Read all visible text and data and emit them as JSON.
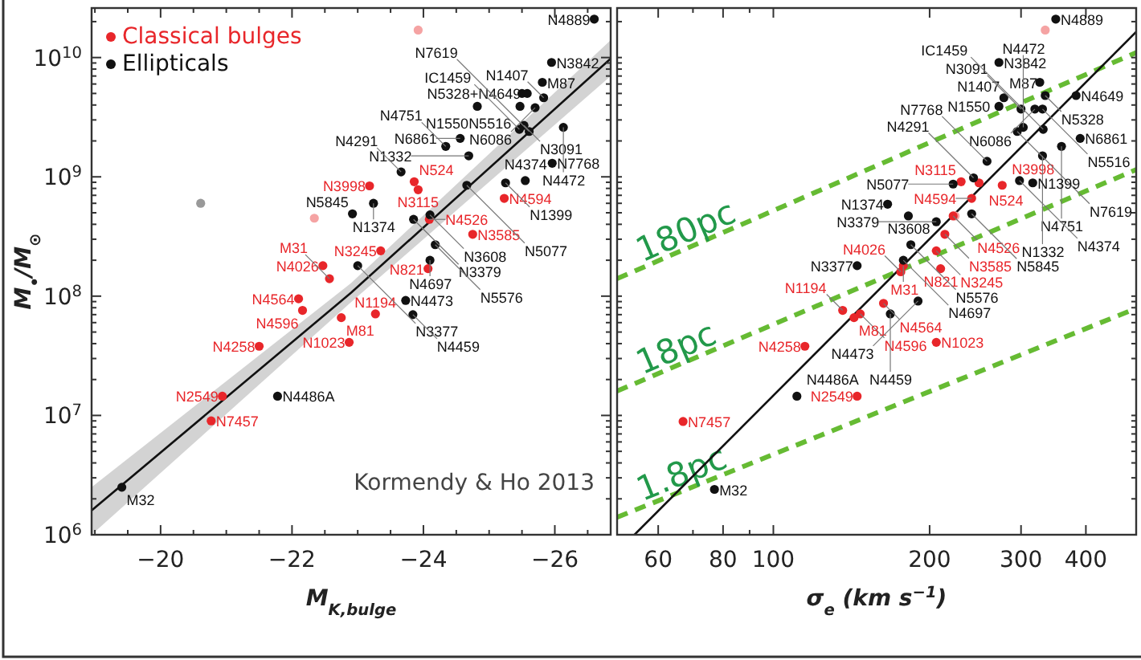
{
  "chart_data": [
    {
      "type": "scatter",
      "xlabel": "M$_{K,bulge}$",
      "ylabel": "M$_{•}$/M$_{⊙}$",
      "log": "y",
      "marker": "circle",
      "grid": false,
      "legend": "top left",
      "xlim": [
        -18.95,
        -26.85
      ],
      "ylim": [
        1000000,
        26000000000
      ],
      "xticks": [
        {
          "value": -19,
          "label": null
        },
        {
          "value": -19.5,
          "label": null
        },
        {
          "value": -20,
          "label": "−20"
        },
        {
          "value": -20.5,
          "label": null
        },
        {
          "value": -21,
          "label": null
        },
        {
          "value": -21.5,
          "label": null
        },
        {
          "value": -22,
          "label": "−22"
        },
        {
          "value": -22.5,
          "label": null
        },
        {
          "value": -23,
          "label": null
        },
        {
          "value": -23.5,
          "label": null
        },
        {
          "value": -24,
          "label": "−24"
        },
        {
          "value": -24.5,
          "label": null
        },
        {
          "value": -25,
          "label": null
        },
        {
          "value": -25.5,
          "label": null
        },
        {
          "value": -26,
          "label": "−26"
        },
        {
          "value": -26.5,
          "label": null
        }
      ],
      "yticks": [
        {
          "value": 1000000,
          "label": "10$^{6}$"
        },
        {
          "value": 2000000,
          "label": null
        },
        {
          "value": 3000000,
          "label": null
        },
        {
          "value": 4000000,
          "label": null
        },
        {
          "value": 5000000,
          "label": null
        },
        {
          "value": 6000000,
          "label": null
        },
        {
          "value": 7000000,
          "label": null
        },
        {
          "value": 8000000,
          "label": null
        },
        {
          "value": 9000000,
          "label": null
        },
        {
          "value": 10000000,
          "label": "10$^{7}$"
        },
        {
          "value": 20000000,
          "label": null
        },
        {
          "value": 30000000,
          "label": null
        },
        {
          "value": 40000000,
          "label": null
        },
        {
          "value": 50000000,
          "label": null
        },
        {
          "value": 60000000,
          "label": null
        },
        {
          "value": 70000000,
          "label": null
        },
        {
          "value": 80000000,
          "label": null
        },
        {
          "value": 90000000,
          "label": null
        },
        {
          "value": 100000000,
          "label": "10$^{8}$"
        },
        {
          "value": 200000000,
          "label": null
        },
        {
          "value": 300000000,
          "label": null
        },
        {
          "value": 400000000,
          "label": null
        },
        {
          "value": 500000000,
          "label": null
        },
        {
          "value": 600000000,
          "label": null
        },
        {
          "value": 700000000,
          "label": null
        },
        {
          "value": 800000000,
          "label": null
        },
        {
          "value": 900000000,
          "label": null
        },
        {
          "value": 1000000000,
          "label": "10$^{9}$"
        },
        {
          "value": 2000000000,
          "label": null
        },
        {
          "value": 3000000000,
          "label": null
        },
        {
          "value": 4000000000,
          "label": null
        },
        {
          "value": 5000000000,
          "label": null
        },
        {
          "value": 6000000000,
          "label": null
        },
        {
          "value": 7000000000,
          "label": null
        },
        {
          "value": 8000000000,
          "label": null
        },
        {
          "value": 9000000000,
          "label": null
        },
        {
          "value": 10000000000,
          "label": "10$^{10}$"
        },
        {
          "value": 20000000000,
          "label": null
        }
      ],
      "series": [
        {
          "type": "line",
          "marker": "none",
          "color": "#111111",
          "x": [
            -18.95,
            -22.9,
            -26.85
          ],
          "values": [
            1600000,
            107000000,
            9800000000
          ],
          "lower": [
            1000000,
            89000000,
            7000000000
          ],
          "upper": [
            2500000,
            129000000,
            14000000000
          ]
        },
        {
          "color": "#f5a3a3",
          "x": [
            -23.92,
            -22.34
          ],
          "values": [
            17000000000,
            450000000
          ]
        },
        {
          "color": "#999999",
          "x": [
            -20.61
          ],
          "values": [
            600000000
          ]
        },
        {
          "name": "Classical bulges",
          "color": "#e8262a",
          "x": [
            -23.86,
            -23.92,
            -23.18,
            -25.23,
            -24.09,
            -24.75,
            -23.35,
            -24.07,
            -22.47,
            -22.57,
            -22.1,
            -22.16,
            -22.75,
            -23.27,
            -22.87,
            -21.5,
            -20.94,
            -20.77
          ],
          "values": [
            910000000,
            780000000,
            840000000,
            660000000,
            440000000,
            330000000,
            240000000,
            170000000,
            180000000,
            140000000,
            95000000,
            76000000,
            66000000,
            71000000,
            41000000,
            38000000,
            14500000,
            9000000
          ]
        },
        {
          "name": "Ellipticals",
          "color": "#111111",
          "x": [
            -26.6,
            -25.95,
            -25.5,
            -25.58,
            -25.81,
            -25.83,
            -25.47,
            -24.82,
            -25.7,
            -25.53,
            -25.46,
            -26.13,
            -24.56,
            -25.61,
            -24.34,
            -25.96,
            -24.69,
            -23.66,
            -25.25,
            -25.55,
            -24.66,
            -23.24,
            -22.92,
            -24.1,
            -23.85,
            -24.1,
            -24.18,
            -23,
            -23.73,
            -23.84,
            -21.78,
            -19.41
          ],
          "values": [
            21000000000,
            9100000000,
            5000000000,
            5000000000,
            6200000000,
            4600000000,
            3900000000,
            3900000000,
            3800000000,
            2700000000,
            2500000000,
            2600000000,
            2100000000,
            2400000000,
            1800000000,
            1300000000,
            1500000000,
            1100000000,
            890000000,
            930000000,
            850000000,
            600000000,
            490000000,
            480000000,
            440000000,
            200000000,
            270000000,
            180000000,
            92000000,
            70000000,
            14500000,
            2500000
          ]
        }
      ],
      "annotations": [
        "Kormendy & Ho 2013",
        {
          "text": "N524",
          "x": -23.86,
          "y": 910000000
        },
        {
          "text": "N3115",
          "x": -23.92,
          "y": 780000000
        },
        {
          "text": "N3998",
          "x": -23.18,
          "y": 840000000
        },
        {
          "text": "N4594",
          "x": -25.23,
          "y": 660000000
        },
        {
          "text": "N4526",
          "x": -24.09,
          "y": 440000000
        },
        {
          "text": "N3585",
          "x": -24.75,
          "y": 330000000
        },
        {
          "text": "N3245",
          "x": -23.35,
          "y": 240000000
        },
        {
          "text": "N821",
          "x": -24.07,
          "y": 170000000
        },
        {
          "text": "N4026",
          "x": -22.47,
          "y": 180000000
        },
        {
          "text": "M31",
          "x": -22.57,
          "y": 140000000
        },
        {
          "text": "N4564",
          "x": -22.1,
          "y": 95000000
        },
        {
          "text": "N4596",
          "x": -22.16,
          "y": 76000000
        },
        {
          "text": "M81",
          "x": -22.75,
          "y": 66000000
        },
        {
          "text": "N1194",
          "x": -23.27,
          "y": 71000000
        },
        {
          "text": "N1023",
          "x": -22.87,
          "y": 41000000
        },
        {
          "text": "N4258",
          "x": -21.5,
          "y": 38000000
        },
        {
          "text": "N2549",
          "x": -20.94,
          "y": 14500000
        },
        {
          "text": "N7457",
          "x": -20.77,
          "y": 9000000
        },
        {
          "text": "N4889",
          "x": -26.6,
          "y": 21000000000
        },
        {
          "text": "N3842",
          "x": -25.95,
          "y": 9100000000
        },
        {
          "text": "N5328+N4649",
          "x": -25.5,
          "y": 5000000000
        },
        {
          "text": "M87",
          "x": -25.81,
          "y": 6200000000
        },
        {
          "text": "N1407",
          "x": -25.83,
          "y": 4600000000
        },
        {
          "text": "N5516",
          "x": -25.47,
          "y": 3900000000
        },
        {
          "text": "N1550",
          "x": -24.82,
          "y": 3900000000
        },
        {
          "text": "N6086",
          "x": -25.7,
          "y": 3800000000
        },
        {
          "text": "N3091",
          "x": -25.53,
          "y": 2700000000
        },
        {
          "text": "IC1459",
          "x": -25.46,
          "y": 2500000000
        },
        {
          "text": "N4472",
          "x": -26.13,
          "y": 2600000000
        },
        {
          "text": "N6861",
          "x": -24.56,
          "y": 2100000000
        },
        {
          "text": "N7619",
          "x": -25.61,
          "y": 2400000000
        },
        {
          "text": "N4751",
          "x": -24.34,
          "y": 1800000000
        },
        {
          "text": "N7768",
          "x": -25.96,
          "y": 1300000000
        },
        {
          "text": "N1332",
          "x": -24.69,
          "y": 1500000000
        },
        {
          "text": "N4291",
          "x": -23.66,
          "y": 1100000000
        },
        {
          "text": "N1399",
          "x": -25.25,
          "y": 890000000
        },
        {
          "text": "N4374",
          "x": -25.55,
          "y": 930000000
        },
        {
          "text": "N5077",
          "x": -24.66,
          "y": 850000000
        },
        {
          "text": "N1374",
          "x": -23.24,
          "y": 600000000
        },
        {
          "text": "N5845",
          "x": -22.92,
          "y": 490000000
        },
        {
          "text": "N3608",
          "x": -24.1,
          "y": 480000000
        },
        {
          "text": "N3379",
          "x": -23.85,
          "y": 440000000
        },
        {
          "text": "N4697",
          "x": -24.1,
          "y": 200000000
        },
        {
          "text": "N5576",
          "x": -24.18,
          "y": 270000000
        },
        {
          "text": "N3377",
          "x": -23,
          "y": 180000000
        },
        {
          "text": "N4473",
          "x": -23.73,
          "y": 92000000
        },
        {
          "text": "N4459",
          "x": -23.84,
          "y": 70000000
        },
        {
          "text": "N4486A",
          "x": -21.78,
          "y": 14500000
        },
        {
          "text": "M32",
          "x": -19.41,
          "y": 2500000
        }
      ]
    },
    {
      "type": "scatter",
      "xlabel": "σ$_{e}$ (km s$^{−1}$)",
      "log": "xy",
      "marker": "circle",
      "grid": false,
      "tick_labels": "x",
      "xlim": [
        50,
        500
      ],
      "ylim": [
        1000000,
        26000000000
      ],
      "xticks": [
        60,
        {
          "value": 70,
          "label": null
        },
        80,
        {
          "value": 90,
          "label": null
        },
        100,
        200,
        300,
        400
      ],
      "yticks": [
        {
          "value": 1000000,
          "label": null
        },
        {
          "value": 2000000,
          "label": null
        },
        {
          "value": 3000000,
          "label": null
        },
        {
          "value": 4000000,
          "label": null
        },
        {
          "value": 5000000,
          "label": null
        },
        {
          "value": 6000000,
          "label": null
        },
        {
          "value": 7000000,
          "label": null
        },
        {
          "value": 8000000,
          "label": null
        },
        {
          "value": 9000000,
          "label": null
        },
        {
          "value": 10000000,
          "label": null
        },
        {
          "value": 20000000,
          "label": null
        },
        {
          "value": 30000000,
          "label": null
        },
        {
          "value": 40000000,
          "label": null
        },
        {
          "value": 50000000,
          "label": null
        },
        {
          "value": 60000000,
          "label": null
        },
        {
          "value": 70000000,
          "label": null
        },
        {
          "value": 80000000,
          "label": null
        },
        {
          "value": 90000000,
          "label": null
        },
        {
          "value": 100000000,
          "label": null
        },
        {
          "value": 200000000,
          "label": null
        },
        {
          "value": 300000000,
          "label": null
        },
        {
          "value": 400000000,
          "label": null
        },
        {
          "value": 500000000,
          "label": null
        },
        {
          "value": 600000000,
          "label": null
        },
        {
          "value": 700000000,
          "label": null
        },
        {
          "value": 800000000,
          "label": null
        },
        {
          "value": 900000000,
          "label": null
        },
        {
          "value": 1000000000,
          "label": null
        },
        {
          "value": 2000000000,
          "label": null
        },
        {
          "value": 3000000000,
          "label": null
        },
        {
          "value": 4000000000,
          "label": null
        },
        {
          "value": 5000000000,
          "label": null
        },
        {
          "value": 6000000000,
          "label": null
        },
        {
          "value": 7000000000,
          "label": null
        },
        {
          "value": 8000000000,
          "label": null
        },
        {
          "value": 9000000000,
          "label": null
        },
        {
          "value": 10000000000,
          "label": null
        },
        {
          "value": 20000000000,
          "label": null
        }
      ],
      "series": [
        {
          "type": "line",
          "marker": "none",
          "name": "180pc",
          "line_style": "dashed",
          "color": "#66bb33",
          "x": [
            50,
            500
          ],
          "values": [
            140000000,
            11000000000
          ]
        },
        {
          "type": "line",
          "marker": "none",
          "name": "18pc",
          "line_style": "dashed",
          "color": "#66bb33",
          "x": [
            50,
            500
          ],
          "values": [
            16000000,
            1150000000
          ]
        },
        {
          "type": "line",
          "marker": "none",
          "name": "1.8pc",
          "line_style": "dashed",
          "color": "#66bb33",
          "x": [
            50,
            500
          ],
          "values": [
            1400000,
            79000000
          ]
        },
        {
          "type": "line",
          "marker": "none",
          "color": "#111111",
          "x": [
            54,
            500
          ],
          "values": [
            1000000,
            16400000000
          ]
        },
        {
          "color": "#f5a3a3",
          "x": [
            334,
            224
          ],
          "values": [
            17000000000,
            470000000
          ]
        },
        {
          "color": "#e8262a",
          "x": [
            249,
            230,
            276,
            241,
            222,
            214,
            206,
            210,
            176,
            178,
            163,
            147,
            143,
            136,
            206,
            115,
            145,
            67
          ],
          "values": [
            890000000,
            910000000,
            850000000,
            660000000,
            470000000,
            330000000,
            240000000,
            170000000,
            160000000,
            180000000,
            87000000,
            71000000,
            66000000,
            76000000,
            41000000,
            38000000,
            14500000,
            8900000
          ]
        },
        {
          "color": "#111111",
          "x": [
            350,
            272,
            326,
            334,
            383,
            278,
            330,
            319,
            300,
            272,
            303,
            295,
            390,
            359,
            330,
            331,
            258,
            243,
            298,
            316,
            222,
            166,
            241,
            182,
            206,
            184,
            178,
            145,
            190,
            168,
            111,
            77
          ],
          "values": [
            21000000000,
            9100000000,
            6200000000,
            4800000000,
            4800000000,
            4600000000,
            3700000000,
            3700000000,
            3700000000,
            3900000000,
            2600000000,
            2400000000,
            2100000000,
            1800000000,
            1500000000,
            2500000000,
            1350000000,
            980000000,
            930000000,
            890000000,
            870000000,
            590000000,
            490000000,
            470000000,
            420000000,
            270000000,
            200000000,
            180000000,
            91000000,
            71000000,
            14500000,
            2400000
          ]
        }
      ],
      "annotations": [
        {
          "text": "N524",
          "x": 249,
          "y": 890000000
        },
        {
          "text": "N3115",
          "x": 230,
          "y": 910000000
        },
        {
          "text": "N3998",
          "x": 276,
          "y": 850000000
        },
        {
          "text": "N4594",
          "x": 241,
          "y": 660000000
        },
        {
          "text": "N4526",
          "x": 222,
          "y": 470000000
        },
        {
          "text": "N3585",
          "x": 214,
          "y": 330000000
        },
        {
          "text": "N3245",
          "x": 206,
          "y": 240000000
        },
        {
          "text": "N821",
          "x": 210,
          "y": 170000000
        },
        {
          "text": "N4026",
          "x": 176,
          "y": 160000000
        },
        {
          "text": "M31",
          "x": 178,
          "y": 180000000
        },
        {
          "text": "N4564",
          "x": 163,
          "y": 87000000
        },
        {
          "text": "N4596",
          "x": 147,
          "y": 71000000
        },
        {
          "text": "M81",
          "x": 143,
          "y": 66000000
        },
        {
          "text": "N1194",
          "x": 136,
          "y": 76000000
        },
        {
          "text": "N1023",
          "x": 206,
          "y": 41000000
        },
        {
          "text": "N4258",
          "x": 115,
          "y": 38000000
        },
        {
          "text": "N2549",
          "x": 145,
          "y": 14500000
        },
        {
          "text": "N7457",
          "x": 67,
          "y": 8900000
        },
        {
          "text": "N4889",
          "x": 350,
          "y": 21000000000
        },
        {
          "text": "N3842",
          "x": 272,
          "y": 9100000000
        },
        {
          "text": "M87",
          "x": 326,
          "y": 6200000000
        },
        {
          "text": "N5328",
          "x": 334,
          "y": 4800000000
        },
        {
          "text": "N4649",
          "x": 383,
          "y": 4800000000
        },
        {
          "text": "N1407",
          "x": 278,
          "y": 4600000000
        },
        {
          "text": "N5516",
          "x": 330,
          "y": 3700000000
        },
        {
          "text": "N6086",
          "x": 319,
          "y": 3700000000
        },
        {
          "text": "N3091",
          "x": 300,
          "y": 3700000000
        },
        {
          "text": "N1550",
          "x": 272,
          "y": 3900000000
        },
        {
          "text": "N4472",
          "x": 303,
          "y": 2600000000
        },
        {
          "text": "N7619",
          "x": 295,
          "y": 2400000000
        },
        {
          "text": "N6861",
          "x": 390,
          "y": 2100000000
        },
        {
          "text": "N4751",
          "x": 359,
          "y": 1800000000
        },
        {
          "text": "N1332",
          "x": 330,
          "y": 1500000000
        },
        {
          "text": "IC1459",
          "x": 331,
          "y": 2500000000
        },
        {
          "text": "N7768",
          "x": 258,
          "y": 1350000000
        },
        {
          "text": "N4291",
          "x": 243,
          "y": 980000000
        },
        {
          "text": "N4374",
          "x": 298,
          "y": 930000000
        },
        {
          "text": "N1399",
          "x": 316,
          "y": 890000000
        },
        {
          "text": "N5077",
          "x": 222,
          "y": 870000000
        },
        {
          "text": "N1374",
          "x": 166,
          "y": 590000000
        },
        {
          "text": "N5845",
          "x": 241,
          "y": 490000000
        },
        {
          "text": "N3608",
          "x": 182,
          "y": 470000000
        },
        {
          "text": "N3379",
          "x": 206,
          "y": 420000000
        },
        {
          "text": "N5576",
          "x": 184,
          "y": 270000000
        },
        {
          "text": "N4697",
          "x": 178,
          "y": 200000000
        },
        {
          "text": "N3377",
          "x": 145,
          "y": 180000000
        },
        {
          "text": "N4473",
          "x": 190,
          "y": 91000000
        },
        {
          "text": "N4459",
          "x": 168,
          "y": 71000000
        },
        {
          "text": "N4486A",
          "x": 111,
          "y": 14500000
        },
        {
          "text": "M32",
          "x": 77,
          "y": 2400000
        }
      ]
    }
  ]
}
